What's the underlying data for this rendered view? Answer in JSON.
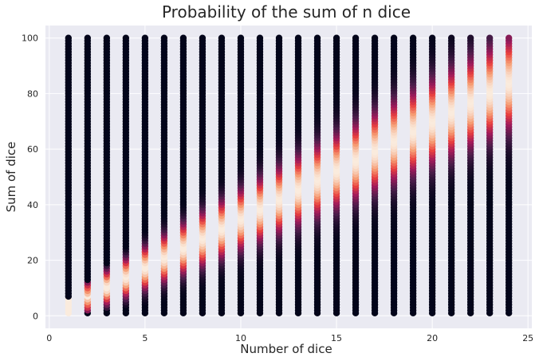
{
  "chart_data": {
    "type": "scatter",
    "title": "Probability of the sum of n dice",
    "xlabel": "Number of dice",
    "ylabel": "Sum of dice",
    "xlim": [
      -0.2,
      25.2
    ],
    "ylim": [
      -4.5,
      104.5
    ],
    "xticks": [
      0,
      5,
      10,
      15,
      20,
      25
    ],
    "yticks": [
      0,
      20,
      40,
      60,
      80,
      100
    ],
    "xtick_labels": [
      "0",
      "5",
      "10",
      "15",
      "20",
      "25"
    ],
    "ytick_labels": [
      "0",
      "20",
      "40",
      "60",
      "80",
      "100"
    ],
    "grid": true,
    "legend": "none",
    "colormap": "rocket",
    "colormap_stops": [
      "#03051a",
      "#4c1d4b",
      "#a11a5b",
      "#e83f3f",
      "#f69c73",
      "#faebdd"
    ],
    "color_meaning": "probability of the sum (dark = low, light = high)",
    "x_values": [
      1,
      2,
      3,
      4,
      5,
      6,
      7,
      8,
      9,
      10,
      11,
      12,
      13,
      14,
      15,
      16,
      17,
      18,
      19,
      20,
      21,
      22,
      23,
      24
    ],
    "y_range": [
      1,
      100
    ],
    "y_step": 1,
    "die_sides": 6,
    "series": [
      {
        "x": 1,
        "y_min": 1,
        "y_max": 100,
        "peak_sum": 3.5
      },
      {
        "x": 2,
        "y_min": 1,
        "y_max": 100,
        "peak_sum": 7
      },
      {
        "x": 3,
        "y_min": 1,
        "y_max": 100,
        "peak_sum": 10.5
      },
      {
        "x": 4,
        "y_min": 1,
        "y_max": 100,
        "peak_sum": 14
      },
      {
        "x": 5,
        "y_min": 1,
        "y_max": 100,
        "peak_sum": 17.5
      },
      {
        "x": 6,
        "y_min": 1,
        "y_max": 100,
        "peak_sum": 21
      },
      {
        "x": 7,
        "y_min": 1,
        "y_max": 100,
        "peak_sum": 24.5
      },
      {
        "x": 8,
        "y_min": 1,
        "y_max": 100,
        "peak_sum": 28
      },
      {
        "x": 9,
        "y_min": 1,
        "y_max": 100,
        "peak_sum": 31.5
      },
      {
        "x": 10,
        "y_min": 1,
        "y_max": 100,
        "peak_sum": 35
      },
      {
        "x": 11,
        "y_min": 1,
        "y_max": 100,
        "peak_sum": 38.5
      },
      {
        "x": 12,
        "y_min": 1,
        "y_max": 100,
        "peak_sum": 42
      },
      {
        "x": 13,
        "y_min": 1,
        "y_max": 100,
        "peak_sum": 45.5
      },
      {
        "x": 14,
        "y_min": 1,
        "y_max": 100,
        "peak_sum": 49
      },
      {
        "x": 15,
        "y_min": 1,
        "y_max": 100,
        "peak_sum": 52.5
      },
      {
        "x": 16,
        "y_min": 1,
        "y_max": 100,
        "peak_sum": 56
      },
      {
        "x": 17,
        "y_min": 1,
        "y_max": 100,
        "peak_sum": 59.5
      },
      {
        "x": 18,
        "y_min": 1,
        "y_max": 100,
        "peak_sum": 63
      },
      {
        "x": 19,
        "y_min": 1,
        "y_max": 100,
        "peak_sum": 66.5
      },
      {
        "x": 20,
        "y_min": 1,
        "y_max": 100,
        "peak_sum": 70
      },
      {
        "x": 21,
        "y_min": 1,
        "y_max": 100,
        "peak_sum": 73.5
      },
      {
        "x": 22,
        "y_min": 1,
        "y_max": 100,
        "peak_sum": 77
      },
      {
        "x": 23,
        "y_min": 1,
        "y_max": 100,
        "peak_sum": 80.5
      },
      {
        "x": 24,
        "y_min": 1,
        "y_max": 100,
        "peak_sum": 84
      }
    ]
  }
}
